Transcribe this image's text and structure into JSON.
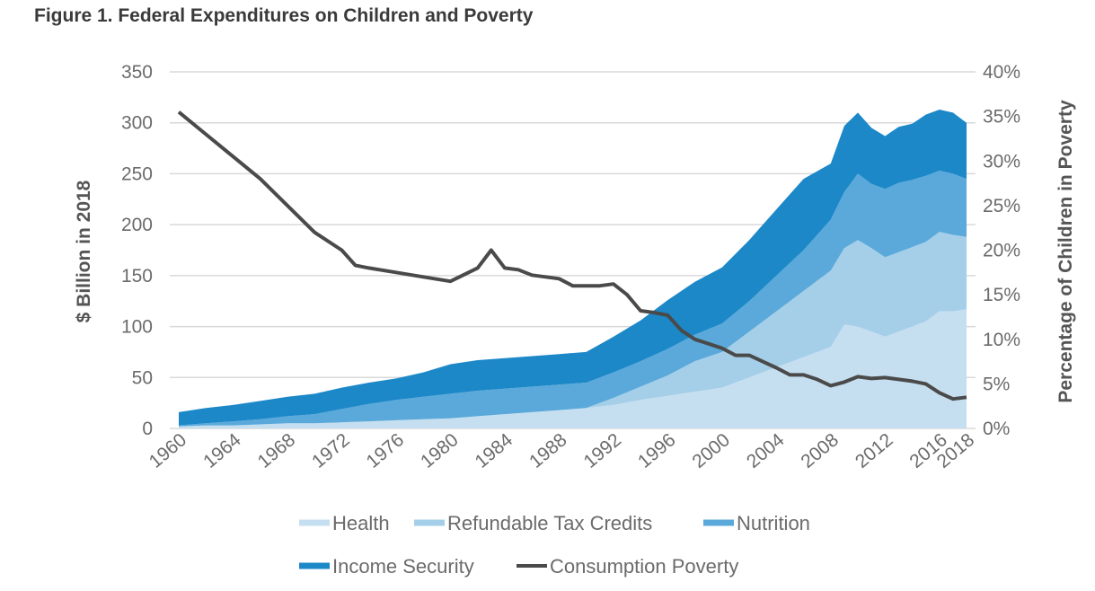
{
  "figure_title": "Figure 1. Federal Expenditures on Children and Poverty",
  "chart_data": {
    "type": "area",
    "title": "Figure 1. Federal Expenditures on Children and Poverty",
    "ylabel": "$ Billion in 2018",
    "y2label": "Percentage of Children in Poverty",
    "ylim": [
      0,
      350
    ],
    "y2lim": [
      0,
      0.4
    ],
    "yticks": [
      "0",
      "50",
      "100",
      "150",
      "200",
      "250",
      "300",
      "350"
    ],
    "y2ticks": [
      "0%",
      "5%",
      "10%",
      "15%",
      "20%",
      "25%",
      "30%",
      "35%",
      "40%"
    ],
    "xticks": [
      "1960",
      "1964",
      "1968",
      "1972",
      "1976",
      "1980",
      "1984",
      "1988",
      "1992",
      "1996",
      "2000",
      "2004",
      "2008",
      "2012",
      "2016",
      "2018"
    ],
    "stacked": true,
    "grid": true,
    "legend_position": "bottom",
    "x": [
      1960,
      1962,
      1964,
      1966,
      1968,
      1970,
      1972,
      1974,
      1976,
      1978,
      1980,
      1982,
      1984,
      1986,
      1988,
      1990,
      1992,
      1994,
      1996,
      1998,
      2000,
      2002,
      2004,
      2006,
      2008,
      2009,
      2010,
      2011,
      2012,
      2013,
      2014,
      2015,
      2016,
      2017,
      2018
    ],
    "series": [
      {
        "name": "Health",
        "color": "#c6dff0",
        "axis": "left",
        "values": [
          2,
          3,
          3,
          4,
          5,
          5,
          6,
          7,
          8,
          9,
          10,
          12,
          14,
          16,
          18,
          20,
          23,
          28,
          32,
          36,
          40,
          50,
          60,
          70,
          80,
          102,
          100,
          95,
          90,
          95,
          100,
          105,
          115,
          115,
          117
        ]
      },
      {
        "name": "Refundable Tax Credits",
        "color": "#a5cfe9",
        "axis": "left",
        "values": [
          0,
          0,
          0,
          0,
          0,
          0,
          0,
          0,
          0,
          0,
          0,
          0,
          0,
          0,
          0,
          0,
          7,
          13,
          20,
          30,
          35,
          45,
          55,
          65,
          75,
          75,
          85,
          82,
          78,
          78,
          78,
          78,
          78,
          75,
          71
        ]
      },
      {
        "name": "Nutrition",
        "color": "#5aa9da",
        "axis": "left",
        "values": [
          1,
          2,
          4,
          5,
          7,
          9,
          13,
          17,
          20,
          22,
          24,
          25,
          25,
          25,
          25,
          25,
          25,
          25,
          26,
          26,
          28,
          30,
          35,
          40,
          50,
          55,
          65,
          63,
          67,
          68,
          66,
          65,
          60,
          60,
          57
        ]
      },
      {
        "name": "Income Security",
        "color": "#1c88c8",
        "axis": "left",
        "values": [
          13,
          15,
          16,
          18,
          19,
          20,
          21,
          21,
          21,
          24,
          29,
          30,
          30,
          30,
          30,
          30,
          35,
          40,
          48,
          52,
          55,
          60,
          65,
          70,
          55,
          65,
          60,
          55,
          52,
          55,
          55,
          60,
          60,
          60,
          55
        ]
      },
      {
        "name": "Consumption Poverty",
        "color": "#4a4a4a",
        "axis": "right",
        "type": "line",
        "x": [
          1960,
          1962,
          1964,
          1966,
          1968,
          1970,
          1972,
          1973,
          1974,
          1976,
          1978,
          1980,
          1982,
          1983,
          1984,
          1985,
          1986,
          1988,
          1989,
          1990,
          1991,
          1992,
          1993,
          1994,
          1995,
          1996,
          1997,
          1998,
          1999,
          2000,
          2001,
          2002,
          2003,
          2004,
          2005,
          2006,
          2007,
          2008,
          2009,
          2010,
          2011,
          2012,
          2013,
          2014,
          2015,
          2016,
          2017,
          2018
        ],
        "values": [
          0.355,
          0.33,
          0.305,
          0.28,
          0.25,
          0.22,
          0.2,
          0.183,
          0.18,
          0.175,
          0.17,
          0.165,
          0.18,
          0.2,
          0.18,
          0.178,
          0.172,
          0.168,
          0.16,
          0.16,
          0.16,
          0.162,
          0.15,
          0.132,
          0.13,
          0.127,
          0.11,
          0.1,
          0.095,
          0.09,
          0.082,
          0.082,
          0.075,
          0.068,
          0.06,
          0.06,
          0.055,
          0.048,
          0.052,
          0.058,
          0.056,
          0.057,
          0.055,
          0.053,
          0.05,
          0.04,
          0.033,
          0.035
        ]
      }
    ]
  }
}
